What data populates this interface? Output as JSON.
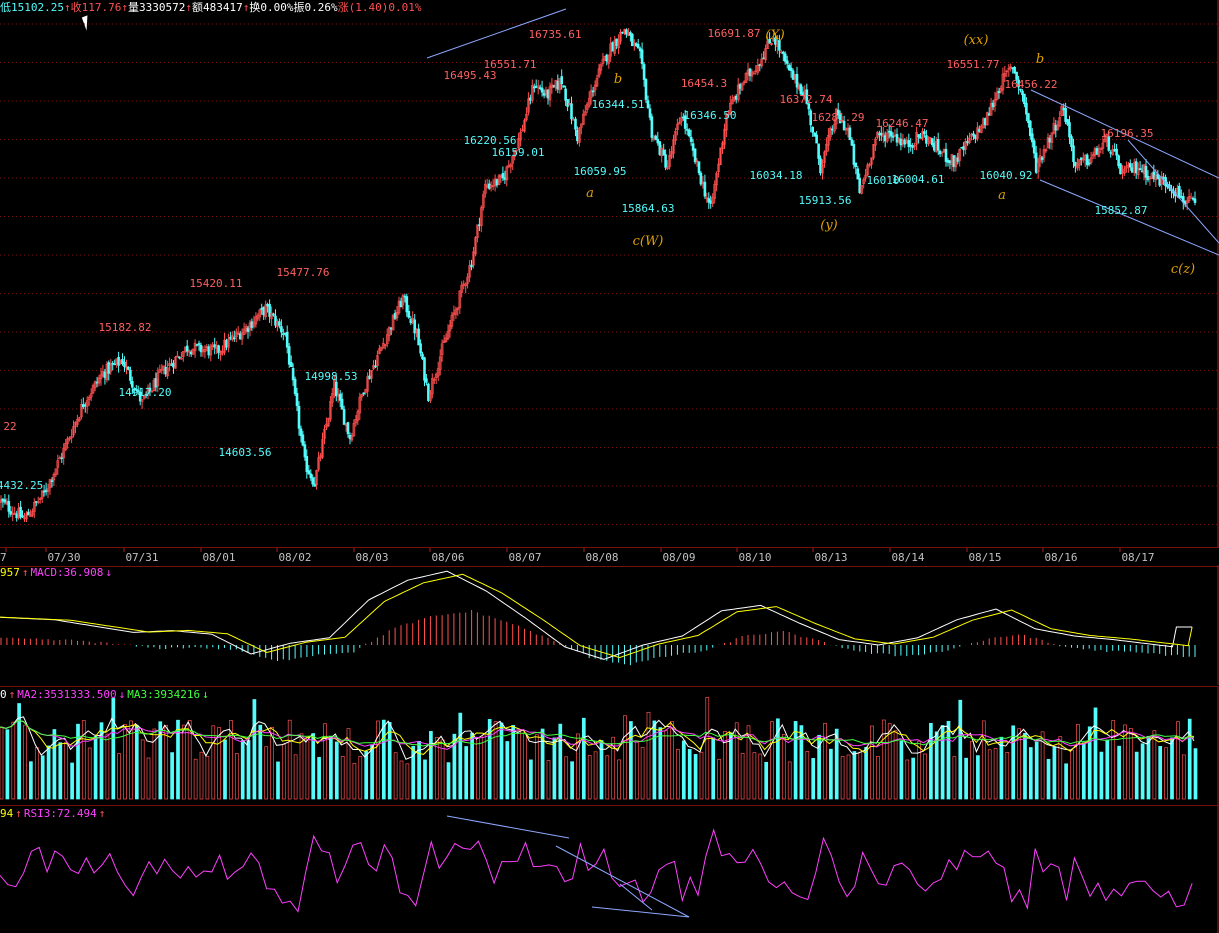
{
  "colors": {
    "up": "#ff5050",
    "down": "#54fcfc",
    "grid": "#7a1010",
    "axis": "#a02020",
    "label_high": "#ff6060",
    "label_low": "#54fcfc",
    "wave": "#e0a000",
    "macd_line": "#ffffff",
    "signal_line": "#ffff00",
    "trend": "#8ca8ff",
    "ma_white": "#ffffff",
    "ma_yellow": "#ffff00",
    "ma_magenta": "#ff40ff",
    "ma_green": "#40ff40",
    "rsi": "#ff40ff"
  },
  "infobar": [
    {
      "text": "低15102.25",
      "color": "#54fcfc"
    },
    {
      "text": "↑",
      "color": "#ff5050"
    },
    {
      "text": "收1",
      "color": "#ff5050"
    },
    {
      "text": "17.76",
      "color": "#ff5050"
    },
    {
      "text": "↑",
      "color": "#ff5050"
    },
    {
      "text": "量3330572",
      "color": "#ffffff"
    },
    {
      "text": "↑",
      "color": "#ff5050"
    },
    {
      "text": "额483417",
      "color": "#ffffff"
    },
    {
      "text": "↑",
      "color": "#ff5050"
    },
    {
      "text": "换0.00%",
      "color": "#ffffff"
    },
    {
      "text": "振0.26%",
      "color": "#ffffff"
    },
    {
      "text": "涨(1.40)0.01%",
      "color": "#ff5050"
    }
  ],
  "macd_legend": {
    "prefix": "957",
    "arrow1": "↑",
    "label": "MACD:36.908",
    "arrow2": "↓"
  },
  "vol_legend": {
    "prefix": "0",
    "arrow1": "↑",
    "ma2": "MA2:3531333.500",
    "arrow2": "↓",
    "ma3": "MA3:3934216",
    "arrow3": "↓"
  },
  "rsi_legend": {
    "prefix": "94",
    "arrow1": "↑",
    "label": "RSI3:72.494",
    "arrow2": "↑"
  },
  "chart_data": {
    "type": "candlestick",
    "ylim": [
      14380,
      16800
    ],
    "dates": [
      "7",
      "07/30",
      "07/31",
      "08/01",
      "08/02",
      "08/03",
      "08/06",
      "08/07",
      "08/08",
      "08/09",
      "08/10",
      "08/13",
      "08/14",
      "08/15",
      "08/16",
      "08/17"
    ],
    "price_anchors": [
      [
        0,
        14520
      ],
      [
        12,
        14440
      ],
      [
        22,
        14560
      ],
      [
        32,
        14760
      ],
      [
        42,
        14980
      ],
      [
        52,
        15120
      ],
      [
        62,
        15180
      ],
      [
        72,
        14980
      ],
      [
        82,
        15120
      ],
      [
        95,
        15240
      ],
      [
        110,
        15220
      ],
      [
        125,
        15330
      ],
      [
        135,
        15420
      ],
      [
        145,
        15300
      ],
      [
        155,
        14700
      ],
      [
        160,
        14610
      ],
      [
        170,
        15060
      ],
      [
        178,
        14820
      ],
      [
        185,
        15050
      ],
      [
        195,
        15260
      ],
      [
        205,
        15470
      ],
      [
        212,
        15300
      ],
      [
        218,
        15020
      ],
      [
        224,
        15200
      ],
      [
        232,
        15420
      ],
      [
        240,
        15640
      ],
      [
        247,
        15990
      ],
      [
        256,
        16020
      ],
      [
        265,
        16230
      ],
      [
        272,
        16470
      ],
      [
        278,
        16410
      ],
      [
        286,
        16480
      ],
      [
        294,
        16220
      ],
      [
        302,
        16450
      ],
      [
        310,
        16620
      ],
      [
        318,
        16720
      ],
      [
        326,
        16590
      ],
      [
        332,
        16240
      ],
      [
        340,
        16080
      ],
      [
        347,
        16330
      ],
      [
        354,
        16110
      ],
      [
        362,
        15880
      ],
      [
        370,
        16320
      ],
      [
        378,
        16470
      ],
      [
        386,
        16560
      ],
      [
        394,
        16690
      ],
      [
        402,
        16520
      ],
      [
        410,
        16420
      ],
      [
        418,
        16080
      ],
      [
        426,
        16320
      ],
      [
        432,
        16250
      ],
      [
        438,
        15960
      ],
      [
        446,
        16210
      ],
      [
        454,
        16240
      ],
      [
        462,
        16180
      ],
      [
        470,
        16230
      ],
      [
        478,
        16160
      ],
      [
        486,
        16100
      ],
      [
        494,
        16200
      ],
      [
        502,
        16290
      ],
      [
        510,
        16470
      ],
      [
        516,
        16550
      ],
      [
        522,
        16380
      ],
      [
        528,
        16080
      ],
      [
        536,
        16240
      ],
      [
        542,
        16360
      ],
      [
        548,
        16080
      ],
      [
        556,
        16120
      ],
      [
        564,
        16200
      ],
      [
        572,
        16050
      ],
      [
        580,
        16080
      ],
      [
        588,
        16030
      ],
      [
        596,
        16000
      ],
      [
        604,
        15920
      ],
      [
        610,
        15900
      ]
    ],
    "price_labels": [
      {
        "text": "16735.61",
        "x": 555,
        "y": 38,
        "kind": "high"
      },
      {
        "text": "16691.87",
        "x": 734,
        "y": 37,
        "kind": "high"
      },
      {
        "text": "16551.71",
        "x": 510,
        "y": 68,
        "kind": "high"
      },
      {
        "text": "16495.43",
        "x": 470,
        "y": 79,
        "kind": "high"
      },
      {
        "text": "16454.3",
        "x": 704,
        "y": 87,
        "kind": "high"
      },
      {
        "text": "16344.51",
        "x": 618,
        "y": 108,
        "kind": "low"
      },
      {
        "text": "16372.74",
        "x": 806,
        "y": 103,
        "kind": "high"
      },
      {
        "text": "16281.29",
        "x": 838,
        "y": 121,
        "kind": "high"
      },
      {
        "text": "16246.47",
        "x": 902,
        "y": 127,
        "kind": "high"
      },
      {
        "text": "16551.77",
        "x": 973,
        "y": 68,
        "kind": "high"
      },
      {
        "text": "16456.22",
        "x": 1031,
        "y": 88,
        "kind": "high"
      },
      {
        "text": "16196.35",
        "x": 1127,
        "y": 137,
        "kind": "high"
      },
      {
        "text": "16346.50",
        "x": 710,
        "y": 119,
        "kind": "low"
      },
      {
        "text": "16220.56",
        "x": 490,
        "y": 144,
        "kind": "low"
      },
      {
        "text": "16159.01",
        "x": 518,
        "y": 156,
        "kind": "low"
      },
      {
        "text": "16059.95",
        "x": 600,
        "y": 175,
        "kind": "low"
      },
      {
        "text": "16034.18",
        "x": 776,
        "y": 179,
        "kind": "low"
      },
      {
        "text": "15913.56",
        "x": 825,
        "y": 204,
        "kind": "low"
      },
      {
        "text": "15864.63",
        "x": 648,
        "y": 212,
        "kind": "low"
      },
      {
        "text": "16010",
        "x": 883,
        "y": 184,
        "kind": "low"
      },
      {
        "text": "16004.61",
        "x": 918,
        "y": 183,
        "kind": "low"
      },
      {
        "text": "16040.92",
        "x": 1006,
        "y": 179,
        "kind": "low"
      },
      {
        "text": "15852.87",
        "x": 1121,
        "y": 214,
        "kind": "low"
      },
      {
        "text": "15477.76",
        "x": 303,
        "y": 276,
        "kind": "high"
      },
      {
        "text": "15420.11",
        "x": 216,
        "y": 287,
        "kind": "high"
      },
      {
        "text": "15182.82",
        "x": 125,
        "y": 331,
        "kind": "high"
      },
      {
        "text": "14917.20",
        "x": 145,
        "y": 396,
        "kind": "low"
      },
      {
        "text": "14998.53",
        "x": 331,
        "y": 380,
        "kind": "low"
      },
      {
        "text": "14603.56",
        "x": 245,
        "y": 456,
        "kind": "low"
      },
      {
        "text": "22",
        "x": 10,
        "y": 430,
        "kind": "high"
      },
      {
        "text": "4432.25",
        "x": 20,
        "y": 489,
        "kind": "low"
      }
    ],
    "wave_labels": [
      {
        "text": "(X)",
        "x": 775,
        "y": 39
      },
      {
        "text": "(xx)",
        "x": 976,
        "y": 44
      },
      {
        "text": "b",
        "x": 618,
        "y": 83
      },
      {
        "text": "b",
        "x": 1040,
        "y": 63
      },
      {
        "text": "a",
        "x": 590,
        "y": 197
      },
      {
        "text": "a",
        "x": 1002,
        "y": 199
      },
      {
        "text": "c(W)",
        "x": 648,
        "y": 245
      },
      {
        "text": "(y)",
        "x": 829,
        "y": 229
      },
      {
        "text": "c(z)",
        "x": 1183,
        "y": 273
      }
    ]
  }
}
